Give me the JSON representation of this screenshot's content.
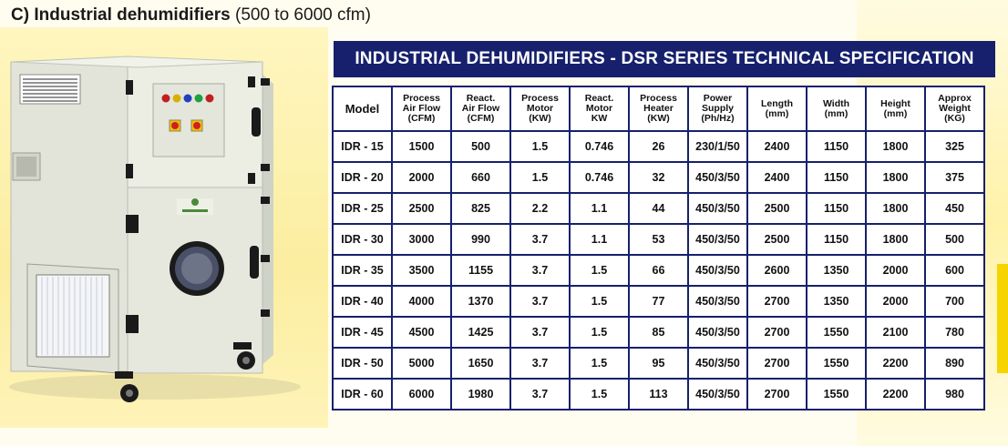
{
  "heading": {
    "prefix": "C)",
    "title": "Industrial dehumidifiers",
    "range": "(500 to 6000 cfm)"
  },
  "banner": {
    "title": "INDUSTRIAL DEHUMIDIFIERS - DSR SERIES TECHNICAL SPECIFICATION"
  },
  "table": {
    "headers": [
      "Model",
      "Process\nAir Flow\n(CFM)",
      "React.\nAir Flow\n(CFM)",
      "Process\nMotor\n(KW)",
      "React.\nMotor\nKW",
      "Process\nHeater\n(KW)",
      "Power\nSupply\n(Ph/Hz)",
      "Length\n(mm)",
      "Width\n(mm)",
      "Height\n(mm)",
      "Approx\nWeight\n(KG)"
    ],
    "rows": [
      [
        "IDR - 15",
        "1500",
        "500",
        "1.5",
        "0.746",
        "26",
        "230/1/50",
        "2400",
        "1150",
        "1800",
        "325"
      ],
      [
        "IDR - 20",
        "2000",
        "660",
        "1.5",
        "0.746",
        "32",
        "450/3/50",
        "2400",
        "1150",
        "1800",
        "375"
      ],
      [
        "IDR - 25",
        "2500",
        "825",
        "2.2",
        "1.1",
        "44",
        "450/3/50",
        "2500",
        "1150",
        "1800",
        "450"
      ],
      [
        "IDR - 30",
        "3000",
        "990",
        "3.7",
        "1.1",
        "53",
        "450/3/50",
        "2500",
        "1150",
        "1800",
        "500"
      ],
      [
        "IDR - 35",
        "3500",
        "1155",
        "3.7",
        "1.5",
        "66",
        "450/3/50",
        "2600",
        "1350",
        "2000",
        "600"
      ],
      [
        "IDR - 40",
        "4000",
        "1370",
        "3.7",
        "1.5",
        "77",
        "450/3/50",
        "2700",
        "1350",
        "2000",
        "700"
      ],
      [
        "IDR - 45",
        "4500",
        "1425",
        "3.7",
        "1.5",
        "85",
        "450/3/50",
        "2700",
        "1550",
        "2100",
        "780"
      ],
      [
        "IDR - 50",
        "5000",
        "1650",
        "3.7",
        "1.5",
        "95",
        "450/3/50",
        "2700",
        "1550",
        "2200",
        "890"
      ],
      [
        "IDR - 60",
        "6000",
        "1980",
        "3.7",
        "1.5",
        "113",
        "450/3/50",
        "2700",
        "1550",
        "2200",
        "980"
      ]
    ]
  },
  "colors": {
    "banner": "#16206c",
    "grid": "#16206c",
    "background_accent": "#fbeea0",
    "machine_body": "#e9ebe1"
  },
  "icons": {
    "product": "industrial-dehumidifier-photo"
  }
}
